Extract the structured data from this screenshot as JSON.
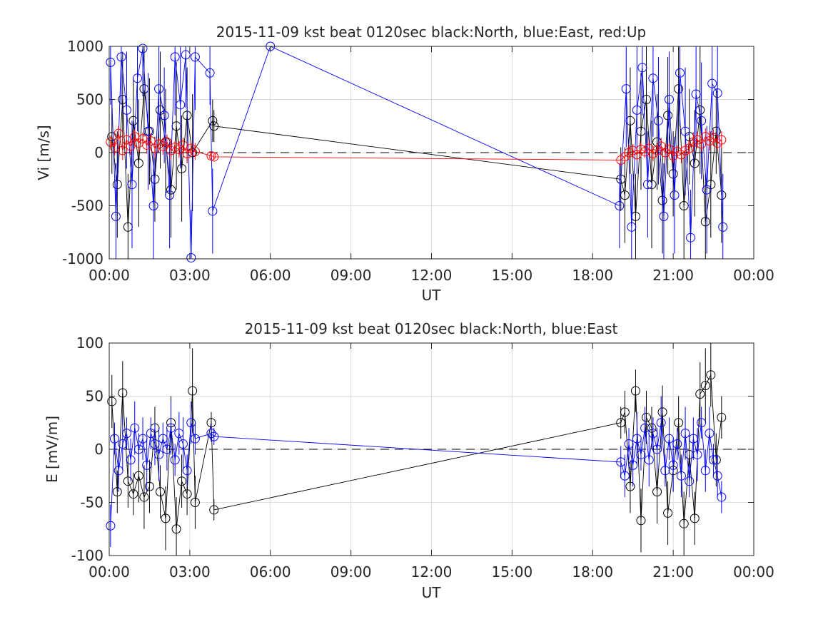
{
  "colors": {
    "north": "#000000",
    "east": "#0000ff",
    "up": "#ff0000",
    "grid": "#dcdcdc",
    "text": "#262626"
  },
  "chart_data": [
    {
      "type": "scatter",
      "title": "2015-11-09 kst beat 0120sec black:North, blue:East, red:Up",
      "xlabel": "UT",
      "ylabel": "Vi [m/s]",
      "ylim": [
        -1000,
        1000
      ],
      "yticks": [
        -1000,
        -500,
        0,
        500,
        1000
      ],
      "yticklabels": [
        "-1000",
        "-500",
        "0",
        "500",
        "1000"
      ],
      "xlim_hours": [
        0,
        24
      ],
      "xticks_hours": [
        0,
        3,
        6,
        9,
        12,
        15,
        18,
        21,
        24
      ],
      "xticklabels": [
        "00:00",
        "03:00",
        "06:00",
        "09:00",
        "12:00",
        "15:00",
        "18:00",
        "21:00",
        "00:00"
      ],
      "grid": true,
      "reference_line": 0,
      "series": [
        {
          "name": "North",
          "color": "#000000",
          "x_hours": [
            0.1,
            0.3,
            0.5,
            0.7,
            0.9,
            1.1,
            1.3,
            1.5,
            1.7,
            1.9,
            2.1,
            2.3,
            2.5,
            2.7,
            2.9,
            3.1,
            3.85,
            3.9,
            19.05,
            19.2,
            19.4,
            19.6,
            19.8,
            20.0,
            20.2,
            20.4,
            20.6,
            20.8,
            21.0,
            21.2,
            21.4,
            21.6,
            21.8,
            22.0,
            22.2,
            22.4,
            22.6,
            22.8
          ],
          "y": [
            150,
            -300,
            500,
            -700,
            300,
            -100,
            600,
            200,
            -250,
            400,
            100,
            -350,
            250,
            -150,
            350,
            0,
            300,
            250,
            -250,
            -400,
            300,
            -600,
            200,
            500,
            -300,
            100,
            -450,
            350,
            -200,
            600,
            -500,
            150,
            -100,
            400,
            -650,
            -300,
            200,
            -400
          ],
          "y_err": [
            350,
            500,
            450,
            500,
            400,
            600,
            450,
            500,
            400,
            550,
            500,
            450,
            600,
            500,
            450,
            550,
            200,
            150,
            300,
            450,
            500,
            400,
            550,
            500,
            600,
            450,
            500,
            550,
            400,
            600,
            500,
            450,
            500,
            600,
            450,
            500,
            400,
            450
          ]
        },
        {
          "name": "East",
          "color": "#0000ff",
          "x_hours": [
            0.05,
            0.25,
            0.45,
            0.65,
            0.85,
            1.05,
            1.25,
            1.45,
            1.65,
            1.85,
            2.05,
            2.25,
            2.45,
            2.65,
            2.85,
            3.05,
            3.2,
            3.75,
            3.85,
            6.0,
            19.0,
            19.25,
            19.45,
            19.65,
            19.85,
            20.05,
            20.25,
            20.45,
            20.65,
            20.85,
            21.05,
            21.25,
            21.45,
            21.65,
            21.85,
            22.05,
            22.25,
            22.45,
            22.65,
            22.85
          ],
          "y": [
            850,
            -600,
            900,
            400,
            -300,
            700,
            980,
            200,
            -500,
            600,
            350,
            -400,
            900,
            450,
            920,
            -990,
            900,
            750,
            -550,
            1000,
            -500,
            600,
            -700,
            400,
            800,
            -300,
            700,
            300,
            -600,
            500,
            -400,
            750,
            200,
            -800,
            550,
            300,
            -350,
            650,
            560,
            -700
          ],
          "y_err": [
            400,
            500,
            450,
            550,
            600,
            500,
            450,
            550,
            500,
            600,
            450,
            500,
            550,
            600,
            500,
            450,
            500,
            300,
            400,
            0,
            400,
            550,
            500,
            600,
            450,
            500,
            550,
            600,
            500,
            450,
            550,
            500,
            600,
            450,
            500,
            550,
            600,
            500,
            450,
            500
          ]
        },
        {
          "name": "Up",
          "color": "#ff0000",
          "x_hours": [
            0.05,
            0.2,
            0.35,
            0.5,
            0.65,
            0.8,
            0.95,
            1.1,
            1.25,
            1.4,
            1.55,
            1.7,
            1.85,
            2.0,
            2.15,
            2.3,
            2.45,
            2.6,
            2.75,
            2.9,
            3.05,
            3.2,
            3.8,
            3.9,
            19.05,
            19.2,
            19.35,
            19.5,
            19.65,
            19.8,
            19.95,
            20.1,
            20.25,
            20.4,
            20.55,
            20.7,
            20.85,
            21.0,
            21.15,
            21.3,
            21.45,
            21.6,
            21.75,
            21.9,
            22.05,
            22.2,
            22.35,
            22.5,
            22.65,
            22.8
          ],
          "y": [
            100,
            50,
            180,
            20,
            120,
            60,
            150,
            90,
            130,
            70,
            110,
            40,
            80,
            60,
            100,
            20,
            50,
            30,
            70,
            -10,
            40,
            10,
            -30,
            -40,
            -70,
            -40,
            0,
            20,
            -20,
            30,
            10,
            40,
            -10,
            20,
            60,
            0,
            30,
            -30,
            10,
            -20,
            20,
            40,
            100,
            120,
            80,
            150,
            110,
            140,
            90,
            120
          ],
          "y_err": [
            60,
            80,
            70,
            90,
            60,
            80,
            70,
            90,
            60,
            80,
            70,
            90,
            60,
            80,
            70,
            90,
            60,
            80,
            70,
            90,
            60,
            80,
            30,
            30,
            50,
            60,
            70,
            60,
            50,
            70,
            60,
            80,
            70,
            60,
            80,
            70,
            60,
            70,
            60,
            80,
            70,
            60,
            90,
            80,
            70,
            80,
            90,
            80,
            70,
            80
          ]
        }
      ]
    },
    {
      "type": "scatter",
      "title": "2015-11-09 kst beat 0120sec black:North, blue:East",
      "xlabel": "UT",
      "ylabel": "E [mV/m]",
      "ylim": [
        -100,
        100
      ],
      "yticks": [
        -100,
        -50,
        0,
        50,
        100
      ],
      "yticklabels": [
        "-100",
        "-50",
        "0",
        "50",
        "100"
      ],
      "xlim_hours": [
        0,
        24
      ],
      "xticks_hours": [
        0,
        3,
        6,
        9,
        12,
        15,
        18,
        21,
        24
      ],
      "xticklabels": [
        "00:00",
        "03:00",
        "06:00",
        "09:00",
        "12:00",
        "15:00",
        "18:00",
        "21:00",
        "00:00"
      ],
      "grid": true,
      "reference_line": 0,
      "series": [
        {
          "name": "North",
          "color": "#000000",
          "x_hours": [
            0.1,
            0.3,
            0.5,
            0.7,
            0.9,
            1.1,
            1.3,
            1.5,
            1.7,
            1.9,
            2.1,
            2.3,
            2.5,
            2.7,
            2.9,
            3.1,
            3.2,
            3.8,
            3.9,
            19.05,
            19.2,
            19.4,
            19.6,
            19.8,
            20.0,
            20.2,
            20.4,
            20.6,
            20.8,
            21.0,
            21.2,
            21.4,
            21.6,
            21.8,
            22.0,
            22.2,
            22.4,
            22.6,
            22.8
          ],
          "y": [
            45,
            -40,
            53,
            -30,
            -42,
            -25,
            -45,
            -35,
            20,
            -40,
            -65,
            25,
            -75,
            -30,
            -42,
            55,
            -50,
            25,
            -57,
            25,
            35,
            -35,
            55,
            -67,
            30,
            20,
            -40,
            35,
            -60,
            -20,
            25,
            -70,
            -5,
            -65,
            52,
            60,
            70,
            -10,
            30
          ],
          "y_err": [
            25,
            20,
            30,
            25,
            20,
            25,
            30,
            25,
            20,
            25,
            30,
            25,
            30,
            25,
            20,
            40,
            25,
            10,
            10,
            15,
            20,
            25,
            20,
            30,
            25,
            20,
            30,
            25,
            30,
            20,
            25,
            30,
            20,
            25,
            30,
            35,
            30,
            25,
            20
          ]
        },
        {
          "name": "East",
          "color": "#0000ff",
          "x_hours": [
            0.05,
            0.2,
            0.35,
            0.5,
            0.65,
            0.8,
            0.95,
            1.1,
            1.25,
            1.4,
            1.55,
            1.7,
            1.85,
            2.0,
            2.15,
            2.3,
            2.45,
            2.6,
            2.75,
            2.9,
            3.05,
            3.2,
            3.8,
            3.9,
            19.05,
            19.2,
            19.35,
            19.5,
            19.65,
            19.8,
            19.95,
            20.1,
            20.25,
            20.4,
            20.55,
            20.7,
            20.85,
            21.0,
            21.15,
            21.3,
            21.45,
            21.6,
            21.75,
            21.9,
            22.05,
            22.2,
            22.35,
            22.5,
            22.65,
            22.8
          ],
          "y": [
            -72,
            10,
            -20,
            5,
            15,
            -10,
            20,
            0,
            10,
            -15,
            15,
            5,
            -5,
            10,
            0,
            20,
            -10,
            15,
            5,
            -20,
            25,
            10,
            15,
            12,
            -12,
            -25,
            5,
            -15,
            10,
            -5,
            20,
            -10,
            15,
            0,
            25,
            -20,
            10,
            -15,
            5,
            -25,
            15,
            -30,
            10,
            -5,
            25,
            -20,
            15,
            -10,
            -25,
            -45
          ],
          "y_err": [
            20,
            15,
            20,
            25,
            15,
            20,
            25,
            15,
            20,
            25,
            15,
            20,
            25,
            15,
            20,
            25,
            15,
            20,
            25,
            15,
            20,
            15,
            8,
            8,
            15,
            20,
            15,
            20,
            25,
            15,
            20,
            25,
            15,
            20,
            25,
            15,
            20,
            25,
            15,
            20,
            25,
            15,
            20,
            25,
            15,
            20,
            25,
            15,
            20,
            15
          ]
        }
      ]
    }
  ]
}
